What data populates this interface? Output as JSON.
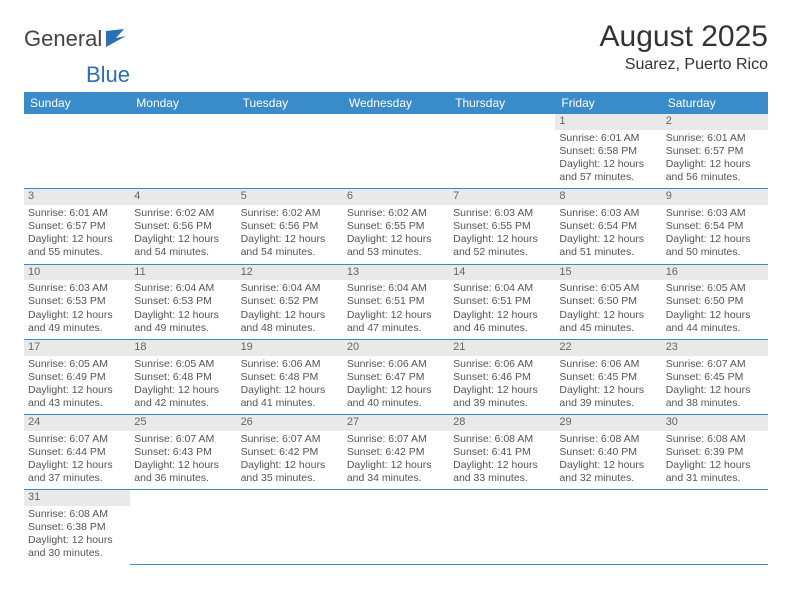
{
  "logo": {
    "text1": "General",
    "text2": "Blue"
  },
  "title": "August 2025",
  "location": "Suarez, Puerto Rico",
  "colors": {
    "header_bg": "#3a8bc9",
    "header_text": "#ffffff",
    "daynum_bg": "#e9e9e9",
    "rule": "#3a8bc9",
    "logo_blue": "#2d6fb7",
    "body_text": "#555555"
  },
  "dow": [
    "Sunday",
    "Monday",
    "Tuesday",
    "Wednesday",
    "Thursday",
    "Friday",
    "Saturday"
  ],
  "days": {
    "1": {
      "sunrise": "Sunrise: 6:01 AM",
      "sunset": "Sunset: 6:58 PM",
      "daylight": "Daylight: 12 hours and 57 minutes."
    },
    "2": {
      "sunrise": "Sunrise: 6:01 AM",
      "sunset": "Sunset: 6:57 PM",
      "daylight": "Daylight: 12 hours and 56 minutes."
    },
    "3": {
      "sunrise": "Sunrise: 6:01 AM",
      "sunset": "Sunset: 6:57 PM",
      "daylight": "Daylight: 12 hours and 55 minutes."
    },
    "4": {
      "sunrise": "Sunrise: 6:02 AM",
      "sunset": "Sunset: 6:56 PM",
      "daylight": "Daylight: 12 hours and 54 minutes."
    },
    "5": {
      "sunrise": "Sunrise: 6:02 AM",
      "sunset": "Sunset: 6:56 PM",
      "daylight": "Daylight: 12 hours and 54 minutes."
    },
    "6": {
      "sunrise": "Sunrise: 6:02 AM",
      "sunset": "Sunset: 6:55 PM",
      "daylight": "Daylight: 12 hours and 53 minutes."
    },
    "7": {
      "sunrise": "Sunrise: 6:03 AM",
      "sunset": "Sunset: 6:55 PM",
      "daylight": "Daylight: 12 hours and 52 minutes."
    },
    "8": {
      "sunrise": "Sunrise: 6:03 AM",
      "sunset": "Sunset: 6:54 PM",
      "daylight": "Daylight: 12 hours and 51 minutes."
    },
    "9": {
      "sunrise": "Sunrise: 6:03 AM",
      "sunset": "Sunset: 6:54 PM",
      "daylight": "Daylight: 12 hours and 50 minutes."
    },
    "10": {
      "sunrise": "Sunrise: 6:03 AM",
      "sunset": "Sunset: 6:53 PM",
      "daylight": "Daylight: 12 hours and 49 minutes."
    },
    "11": {
      "sunrise": "Sunrise: 6:04 AM",
      "sunset": "Sunset: 6:53 PM",
      "daylight": "Daylight: 12 hours and 49 minutes."
    },
    "12": {
      "sunrise": "Sunrise: 6:04 AM",
      "sunset": "Sunset: 6:52 PM",
      "daylight": "Daylight: 12 hours and 48 minutes."
    },
    "13": {
      "sunrise": "Sunrise: 6:04 AM",
      "sunset": "Sunset: 6:51 PM",
      "daylight": "Daylight: 12 hours and 47 minutes."
    },
    "14": {
      "sunrise": "Sunrise: 6:04 AM",
      "sunset": "Sunset: 6:51 PM",
      "daylight": "Daylight: 12 hours and 46 minutes."
    },
    "15": {
      "sunrise": "Sunrise: 6:05 AM",
      "sunset": "Sunset: 6:50 PM",
      "daylight": "Daylight: 12 hours and 45 minutes."
    },
    "16": {
      "sunrise": "Sunrise: 6:05 AM",
      "sunset": "Sunset: 6:50 PM",
      "daylight": "Daylight: 12 hours and 44 minutes."
    },
    "17": {
      "sunrise": "Sunrise: 6:05 AM",
      "sunset": "Sunset: 6:49 PM",
      "daylight": "Daylight: 12 hours and 43 minutes."
    },
    "18": {
      "sunrise": "Sunrise: 6:05 AM",
      "sunset": "Sunset: 6:48 PM",
      "daylight": "Daylight: 12 hours and 42 minutes."
    },
    "19": {
      "sunrise": "Sunrise: 6:06 AM",
      "sunset": "Sunset: 6:48 PM",
      "daylight": "Daylight: 12 hours and 41 minutes."
    },
    "20": {
      "sunrise": "Sunrise: 6:06 AM",
      "sunset": "Sunset: 6:47 PM",
      "daylight": "Daylight: 12 hours and 40 minutes."
    },
    "21": {
      "sunrise": "Sunrise: 6:06 AM",
      "sunset": "Sunset: 6:46 PM",
      "daylight": "Daylight: 12 hours and 39 minutes."
    },
    "22": {
      "sunrise": "Sunrise: 6:06 AM",
      "sunset": "Sunset: 6:45 PM",
      "daylight": "Daylight: 12 hours and 39 minutes."
    },
    "23": {
      "sunrise": "Sunrise: 6:07 AM",
      "sunset": "Sunset: 6:45 PM",
      "daylight": "Daylight: 12 hours and 38 minutes."
    },
    "24": {
      "sunrise": "Sunrise: 6:07 AM",
      "sunset": "Sunset: 6:44 PM",
      "daylight": "Daylight: 12 hours and 37 minutes."
    },
    "25": {
      "sunrise": "Sunrise: 6:07 AM",
      "sunset": "Sunset: 6:43 PM",
      "daylight": "Daylight: 12 hours and 36 minutes."
    },
    "26": {
      "sunrise": "Sunrise: 6:07 AM",
      "sunset": "Sunset: 6:42 PM",
      "daylight": "Daylight: 12 hours and 35 minutes."
    },
    "27": {
      "sunrise": "Sunrise: 6:07 AM",
      "sunset": "Sunset: 6:42 PM",
      "daylight": "Daylight: 12 hours and 34 minutes."
    },
    "28": {
      "sunrise": "Sunrise: 6:08 AM",
      "sunset": "Sunset: 6:41 PM",
      "daylight": "Daylight: 12 hours and 33 minutes."
    },
    "29": {
      "sunrise": "Sunrise: 6:08 AM",
      "sunset": "Sunset: 6:40 PM",
      "daylight": "Daylight: 12 hours and 32 minutes."
    },
    "30": {
      "sunrise": "Sunrise: 6:08 AM",
      "sunset": "Sunset: 6:39 PM",
      "daylight": "Daylight: 12 hours and 31 minutes."
    },
    "31": {
      "sunrise": "Sunrise: 6:08 AM",
      "sunset": "Sunset: 6:38 PM",
      "daylight": "Daylight: 12 hours and 30 minutes."
    }
  },
  "layout": {
    "first_weekday_index": 5,
    "num_days": 31,
    "cols": 7
  }
}
